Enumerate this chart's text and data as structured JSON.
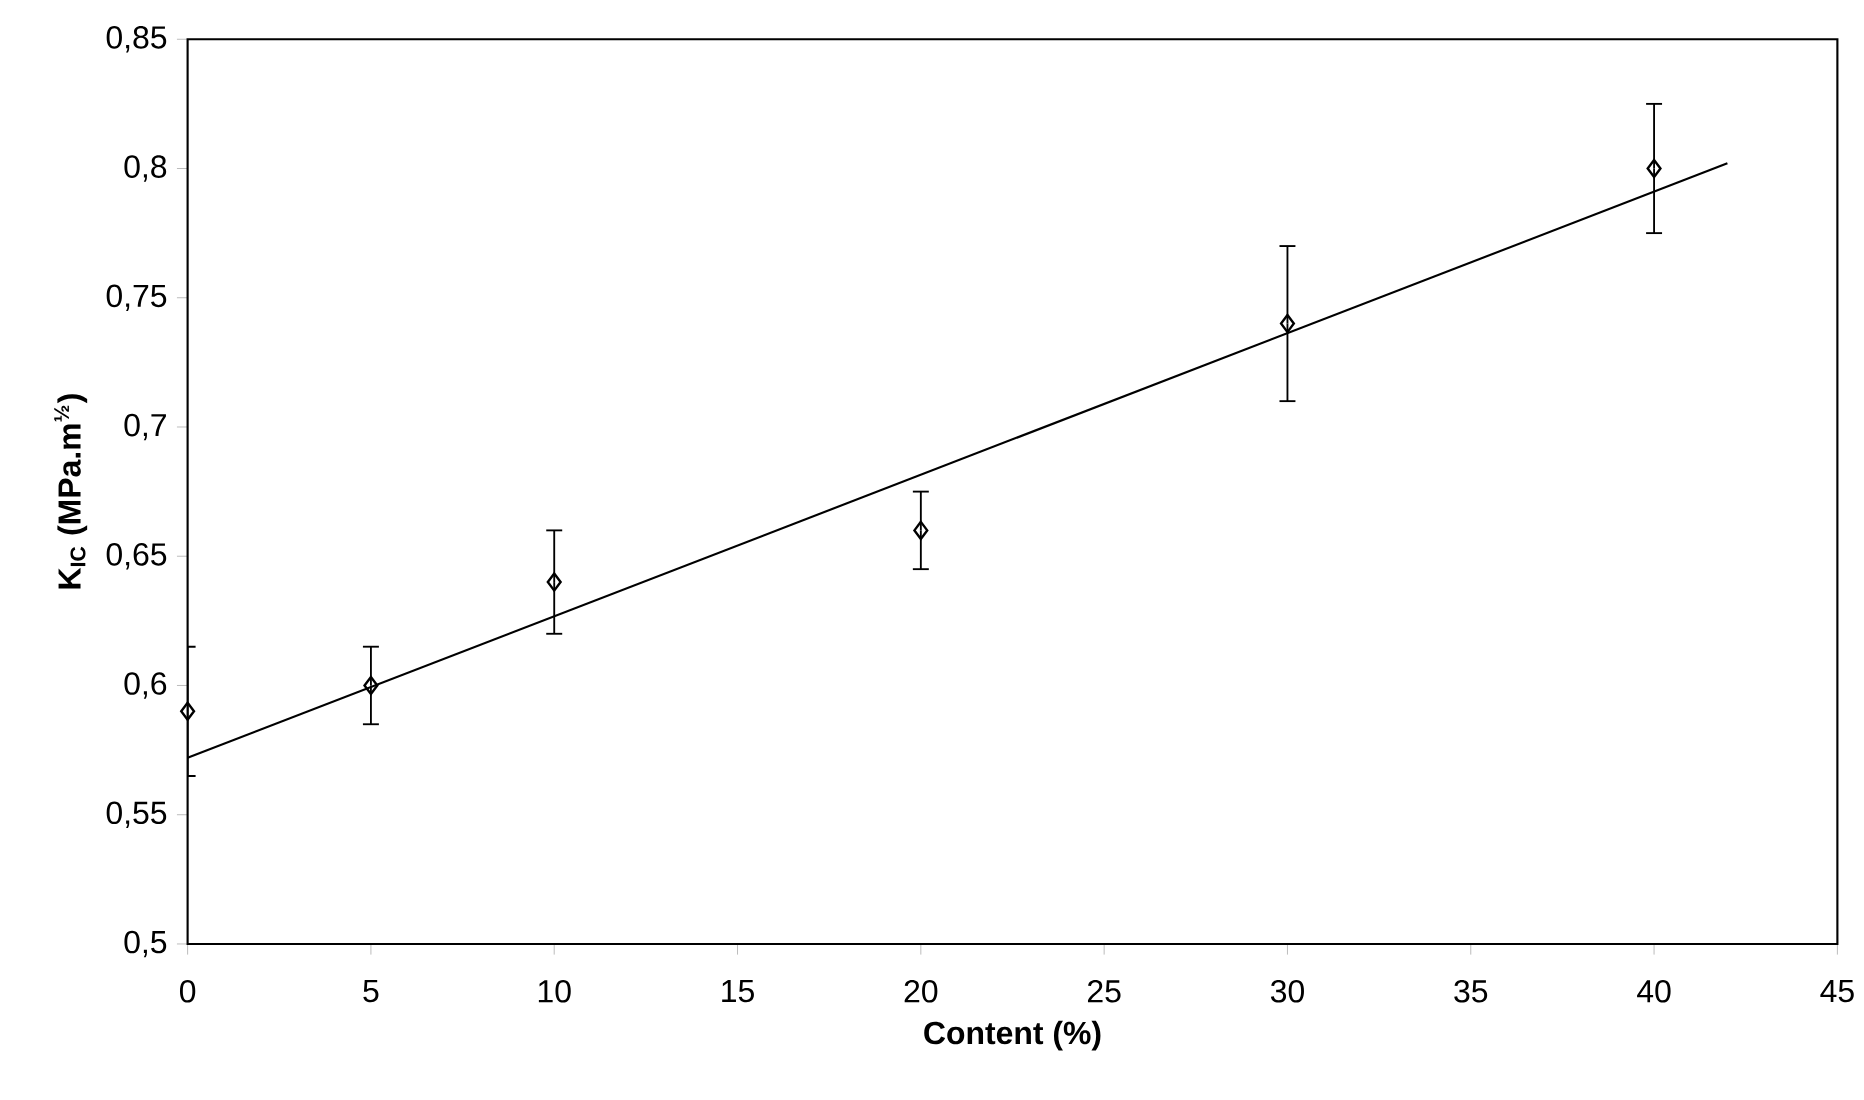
{
  "chart_data": {
    "type": "scatter",
    "xlabel": "Content (%)",
    "ylabel": "K$_{IC}$ (MPa.m$^{½}$)",
    "xlim": [
      0,
      45
    ],
    "xticks": [
      0,
      5,
      10,
      15,
      20,
      25,
      30,
      35,
      40,
      45
    ],
    "ylim": [
      0.5,
      0.85
    ],
    "yticks": [
      {
        "value": 0.5,
        "label": "0,5"
      },
      {
        "value": 0.55,
        "label": "0,55"
      },
      {
        "value": 0.6,
        "label": "0,6"
      },
      {
        "value": 0.65,
        "label": "0,65"
      },
      {
        "value": 0.7,
        "label": "0,7"
      },
      {
        "value": 0.75,
        "label": "0,75"
      },
      {
        "value": 0.8,
        "label": "0,8"
      },
      {
        "value": 0.85,
        "label": "0,85"
      }
    ],
    "grid": false,
    "series": [
      {
        "marker": "diamond",
        "color": "#000000",
        "x": [
          0,
          5,
          10,
          20,
          30,
          40
        ],
        "values": [
          0.59,
          0.6,
          0.64,
          0.66,
          0.74,
          0.8
        ],
        "errors": [
          [
            0.565,
            0.615
          ],
          [
            0.585,
            0.615
          ],
          [
            0.62,
            0.66
          ],
          [
            0.645,
            0.675
          ],
          [
            0.71,
            0.77
          ],
          [
            0.775,
            0.825
          ]
        ]
      },
      {
        "type": "line",
        "marker": "none",
        "color": "#000000",
        "x": [
          0,
          42
        ],
        "values": [
          0.572,
          0.802
        ]
      }
    ]
  }
}
